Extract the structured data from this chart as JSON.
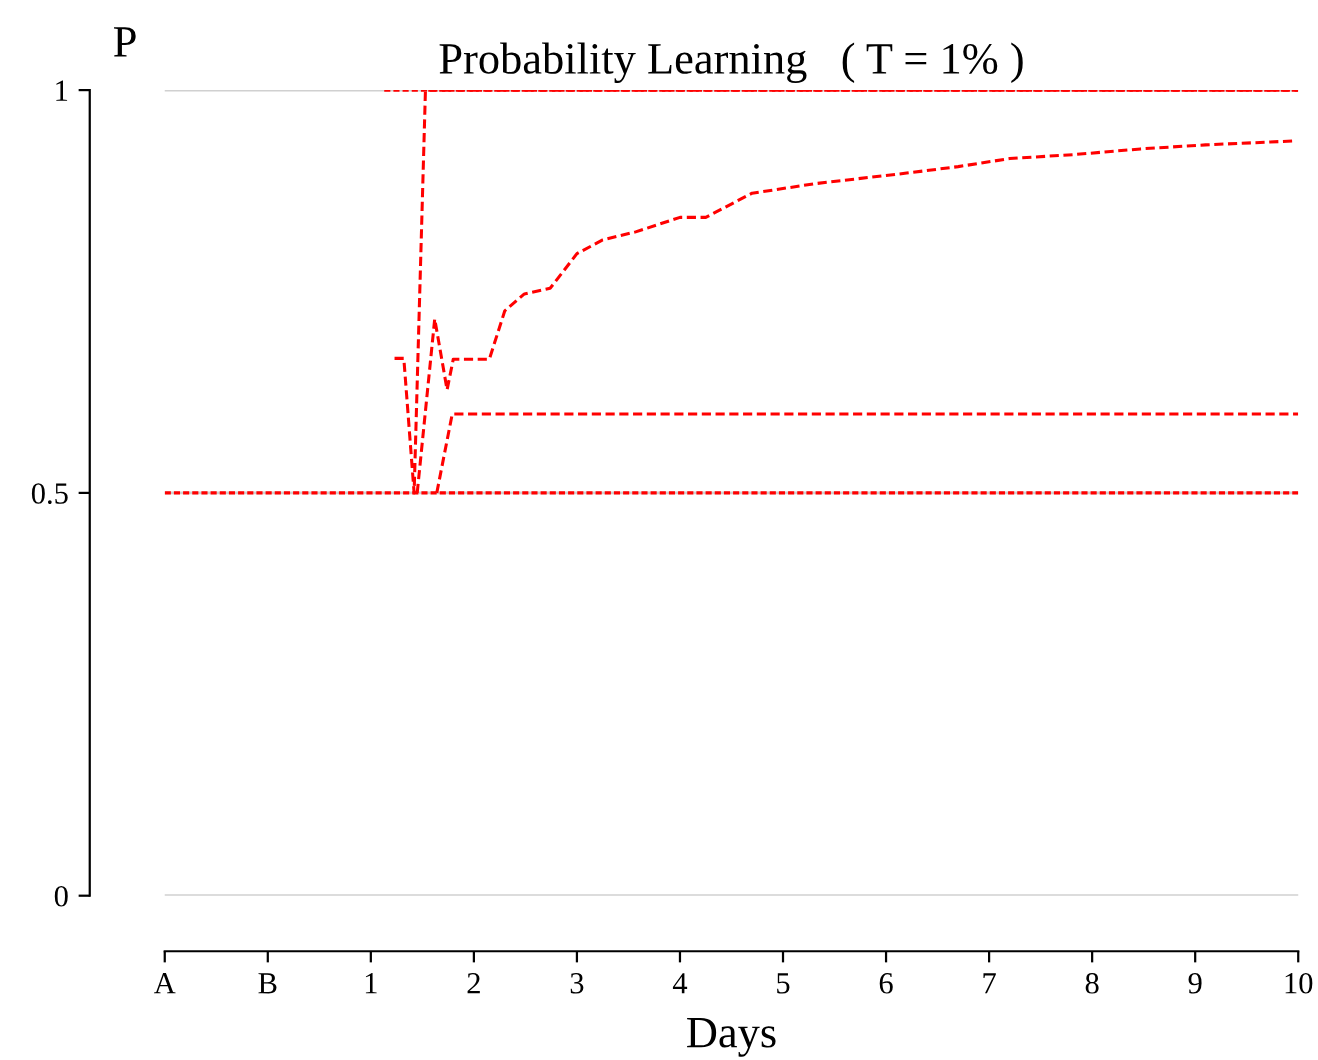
{
  "chart_data": {
    "type": "line",
    "title": "Probability Learning   ( T = 1% )",
    "xlabel": "Days",
    "ylabel": "P",
    "xlim": [
      -1,
      10
    ],
    "ylim": [
      0,
      1
    ],
    "xticks": [
      {
        "value": -1,
        "label": "A"
      },
      {
        "value": 0,
        "label": "B"
      },
      1,
      2,
      3,
      4,
      5,
      6,
      7,
      8,
      9,
      10
    ],
    "yticks": [
      0,
      0.5,
      1
    ],
    "grid": "y",
    "legend": false,
    "marker": "none",
    "series": [
      {
        "color": "#ff0000",
        "line_style": "dotted",
        "x": [
          1.13,
          10
        ],
        "values": [
          1,
          1
        ]
      },
      {
        "color": "#ff0000",
        "line_style": "dashed",
        "x": [
          1.23,
          1.32,
          1.42,
          1.53,
          10
        ],
        "values": [
          0.667,
          0.667,
          0.5,
          1,
          1
        ]
      },
      {
        "color": "#ff0000",
        "line_style": "dashed",
        "x": [
          1.45,
          1.62,
          1.74,
          1.8,
          2.15,
          2.3,
          2.49,
          2.74,
          3.0,
          3.25,
          3.57,
          4.0,
          4.25,
          4.7,
          5.32,
          6.2,
          6.7,
          7.2,
          7.83,
          8.47,
          9.1,
          9.98
        ],
        "values": [
          0.5,
          0.716,
          0.628,
          0.666,
          0.666,
          0.726,
          0.747,
          0.754,
          0.797,
          0.814,
          0.824,
          0.842,
          0.842,
          0.872,
          0.884,
          0.897,
          0.905,
          0.915,
          0.92,
          0.927,
          0.932,
          0.937
        ]
      },
      {
        "color": "#ff0000",
        "line_style": "dashed",
        "x": [
          1.64,
          1.79,
          10
        ],
        "values": [
          0.5,
          0.598,
          0.598
        ]
      },
      {
        "color": "#ff0000",
        "line_style": "dotted",
        "x": [
          -1,
          10
        ],
        "values": [
          0.5,
          0.5
        ]
      }
    ]
  }
}
